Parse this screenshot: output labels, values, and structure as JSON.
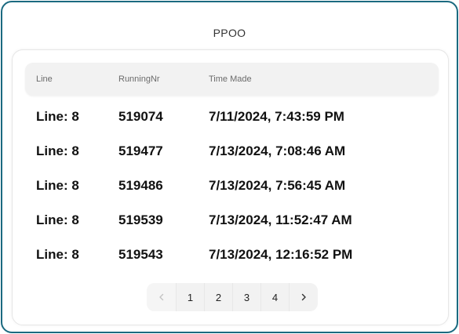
{
  "title": "PPOO",
  "table": {
    "headers": [
      "Line",
      "RunningNr",
      "Time Made"
    ],
    "rows": [
      {
        "line": "Line: 8",
        "running_nr": "519074",
        "time_made": "7/11/2024, 7:43:59 PM"
      },
      {
        "line": "Line: 8",
        "running_nr": "519477",
        "time_made": "7/13/2024, 7:08:46 AM"
      },
      {
        "line": "Line: 8",
        "running_nr": "519486",
        "time_made": "7/13/2024, 7:56:45 AM"
      },
      {
        "line": "Line: 8",
        "running_nr": "519539",
        "time_made": "7/13/2024, 11:52:47 AM"
      },
      {
        "line": "Line: 8",
        "running_nr": "519543",
        "time_made": "7/13/2024, 12:16:52 PM"
      }
    ]
  },
  "pagination": {
    "prev_icon": "chevron-left-icon",
    "next_icon": "chevron-right-icon",
    "pages": [
      "1",
      "2",
      "3",
      "4"
    ]
  },
  "colors": {
    "frame_border": "#1b6a80",
    "header_bg": "#f2f2f2",
    "pager_bg": "#f2f2f2"
  }
}
